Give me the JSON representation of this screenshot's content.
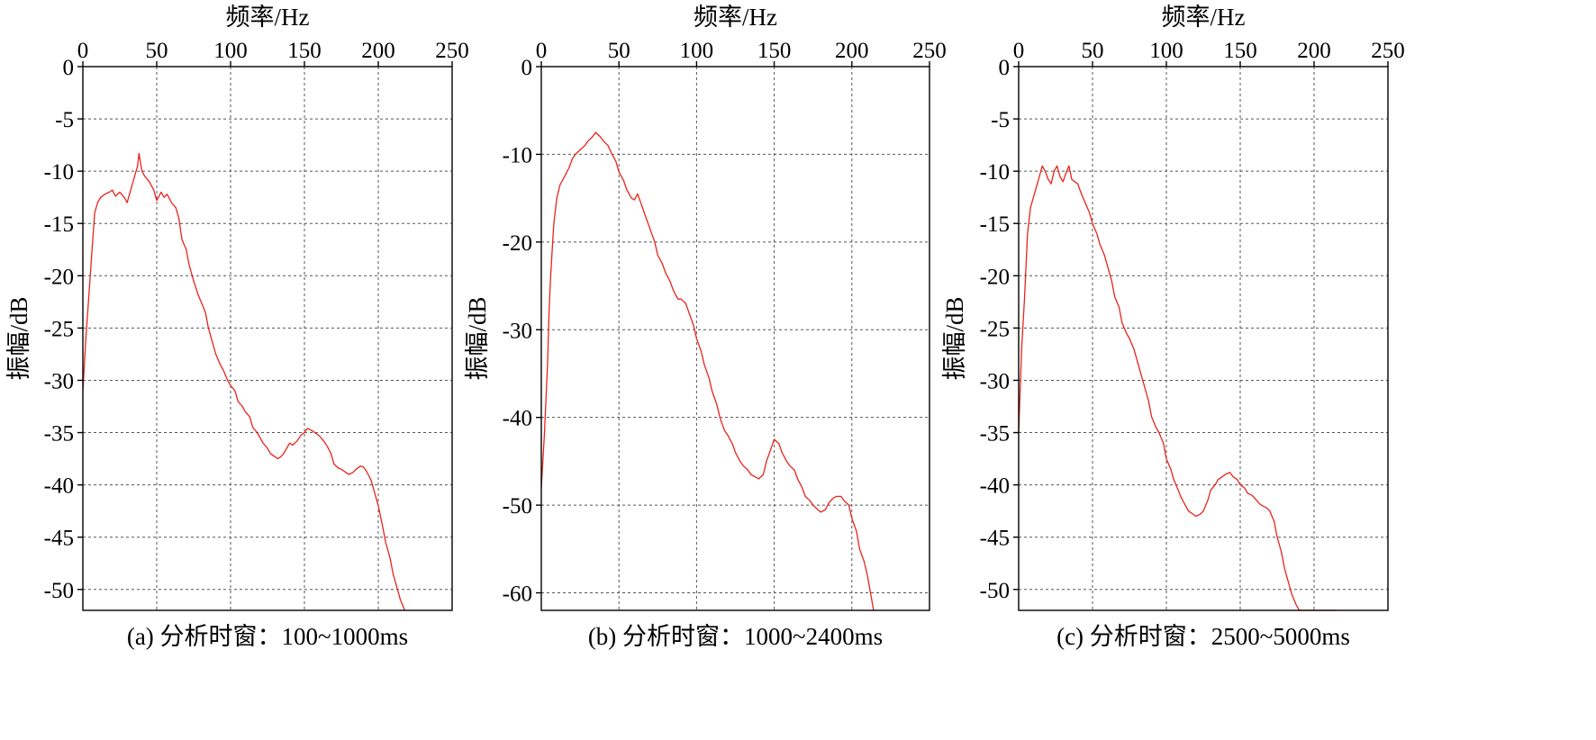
{
  "colors": {
    "series": "#e8231c",
    "grid": "#555555",
    "frame": "#000000",
    "background": "#ffffff"
  },
  "chart_data": [
    {
      "type": "line",
      "caption": "(a) 分析时窗：100~1000ms",
      "xlabel": "频率/Hz",
      "ylabel": "振幅/dB",
      "x_axis_position": "top",
      "grid": true,
      "xlim": [
        0,
        250
      ],
      "ylim": [
        -52,
        0
      ],
      "xticks": [
        "0",
        "50",
        "100",
        "150",
        "200",
        "250"
      ],
      "yticks": [
        "0",
        "-5",
        "-10",
        "-15",
        "-20",
        "-25",
        "-30",
        "-35",
        "-40",
        "-45",
        "-50"
      ],
      "series": [
        {
          "x": [
            0,
            2,
            4,
            6,
            8,
            10,
            12,
            15,
            18,
            20,
            22,
            25,
            28,
            30,
            33,
            35,
            37,
            38,
            40,
            42,
            45,
            48,
            50,
            53,
            55,
            57,
            60,
            63,
            65,
            67,
            70,
            72,
            75,
            78,
            80,
            83,
            85,
            88,
            90,
            93,
            95,
            98,
            100,
            103,
            105,
            108,
            110,
            113,
            115,
            118,
            120,
            122,
            125,
            127,
            130,
            132,
            134,
            136,
            138,
            140,
            142,
            145,
            148,
            150,
            152,
            155,
            157,
            160,
            163,
            165,
            168,
            170,
            173,
            175,
            178,
            180,
            183,
            185,
            188,
            190,
            192,
            195,
            197,
            200,
            203,
            205,
            208,
            210,
            212,
            215,
            218
          ],
          "y": [
            -31,
            -26,
            -22,
            -18,
            -14,
            -13,
            -12.5,
            -12.2,
            -12.0,
            -11.8,
            -12.4,
            -12.0,
            -12.5,
            -13.0,
            -11.5,
            -10.5,
            -9.5,
            -8.3,
            -10.0,
            -10.5,
            -11.0,
            -11.8,
            -12.8,
            -12.0,
            -12.5,
            -12.2,
            -13.0,
            -13.5,
            -14.5,
            -16.5,
            -17.5,
            -19.0,
            -20.5,
            -21.8,
            -22.5,
            -23.5,
            -25.0,
            -26.5,
            -27.5,
            -28.5,
            -29.0,
            -30.0,
            -30.5,
            -31.0,
            -32.0,
            -32.5,
            -33.0,
            -33.5,
            -34.5,
            -35.0,
            -35.5,
            -36.0,
            -36.5,
            -37.0,
            -37.3,
            -37.5,
            -37.3,
            -37.0,
            -36.5,
            -36.0,
            -36.2,
            -35.8,
            -35.2,
            -35.0,
            -34.6,
            -34.8,
            -35.0,
            -35.3,
            -35.8,
            -36.2,
            -37.0,
            -38.0,
            -38.4,
            -38.5,
            -38.8,
            -39.0,
            -38.8,
            -38.5,
            -38.2,
            -38.3,
            -38.7,
            -39.5,
            -40.5,
            -42.0,
            -44.0,
            -45.5,
            -47.0,
            -48.5,
            -49.5,
            -51.0,
            -52.0
          ]
        }
      ]
    },
    {
      "type": "line",
      "caption": "(b) 分析时窗：1000~2400ms",
      "xlabel": "频率/Hz",
      "ylabel": "振幅/dB",
      "x_axis_position": "top",
      "grid": true,
      "xlim": [
        0,
        250
      ],
      "ylim": [
        -62,
        0
      ],
      "xticks": [
        "0",
        "50",
        "100",
        "150",
        "200",
        "250"
      ],
      "yticks": [
        "0",
        "-10",
        "-20",
        "-30",
        "-40",
        "-50",
        "-60"
      ],
      "series": [
        {
          "x": [
            0,
            2,
            4,
            5,
            6,
            8,
            10,
            12,
            15,
            18,
            20,
            22,
            25,
            28,
            30,
            33,
            35,
            38,
            40,
            43,
            45,
            48,
            50,
            53,
            55,
            58,
            60,
            62,
            65,
            68,
            70,
            73,
            75,
            78,
            80,
            83,
            85,
            88,
            90,
            93,
            95,
            98,
            100,
            103,
            105,
            108,
            110,
            113,
            115,
            118,
            120,
            123,
            125,
            128,
            130,
            133,
            135,
            138,
            140,
            143,
            145,
            148,
            150,
            153,
            155,
            158,
            160,
            163,
            165,
            168,
            170,
            173,
            175,
            178,
            180,
            183,
            185,
            188,
            190,
            193,
            195,
            198,
            200,
            203,
            205,
            208,
            210,
            212,
            214
          ],
          "y": [
            -48,
            -42,
            -34,
            -28,
            -24,
            -18,
            -15,
            -13.5,
            -12.5,
            -11.5,
            -10.5,
            -10.0,
            -9.5,
            -9.0,
            -8.5,
            -8.0,
            -7.5,
            -8.0,
            -8.5,
            -9.0,
            -9.8,
            -10.8,
            -12.0,
            -13.0,
            -14.0,
            -15.0,
            -15.2,
            -14.5,
            -16.0,
            -17.5,
            -18.5,
            -20.0,
            -21.5,
            -22.5,
            -23.5,
            -24.5,
            -25.5,
            -26.5,
            -26.5,
            -27.0,
            -28.0,
            -29.5,
            -31.0,
            -32.5,
            -34.0,
            -35.5,
            -37.0,
            -38.5,
            -40.0,
            -41.5,
            -42.0,
            -43.0,
            -44.0,
            -45.0,
            -45.5,
            -46.0,
            -46.5,
            -46.8,
            -47.0,
            -46.5,
            -45.0,
            -43.5,
            -42.5,
            -43.0,
            -44.0,
            -45.0,
            -45.5,
            -46.0,
            -47.0,
            -48.0,
            -49.0,
            -49.5,
            -50.0,
            -50.5,
            -50.8,
            -50.5,
            -49.8,
            -49.2,
            -49.0,
            -49.0,
            -49.5,
            -50.0,
            -51.5,
            -53.0,
            -55.0,
            -56.5,
            -58.0,
            -60.0,
            -62.0
          ]
        }
      ]
    },
    {
      "type": "line",
      "caption": "(c) 分析时窗：2500~5000ms",
      "xlabel": "频率/Hz",
      "ylabel": "振幅/dB",
      "x_axis_position": "top",
      "grid": true,
      "xlim": [
        0,
        250
      ],
      "ylim": [
        -52,
        0
      ],
      "xticks": [
        "0",
        "50",
        "100",
        "150",
        "200",
        "250"
      ],
      "yticks": [
        "0",
        "-5",
        "-10",
        "-15",
        "-20",
        "-25",
        "-30",
        "-35",
        "-40",
        "-45",
        "-50"
      ],
      "series": [
        {
          "x": [
            0,
            2,
            4,
            6,
            8,
            10,
            12,
            14,
            16,
            18,
            20,
            22,
            24,
            26,
            28,
            30,
            32,
            34,
            36,
            38,
            40,
            42,
            45,
            48,
            50,
            53,
            55,
            58,
            60,
            63,
            65,
            68,
            70,
            73,
            75,
            78,
            80,
            83,
            85,
            88,
            90,
            93,
            95,
            98,
            100,
            103,
            105,
            108,
            110,
            113,
            115,
            118,
            120,
            123,
            125,
            128,
            130,
            133,
            135,
            138,
            140,
            143,
            145,
            148,
            150,
            153,
            155,
            158,
            160,
            163,
            165,
            168,
            170,
            173,
            175,
            178,
            180,
            183,
            185,
            188,
            190,
            193,
            195,
            198,
            200,
            203,
            205,
            208,
            210,
            213,
            215
          ],
          "y": [
            -35,
            -27,
            -22,
            -16,
            -13.5,
            -12.5,
            -11.5,
            -10.5,
            -9.5,
            -10.0,
            -10.8,
            -11.2,
            -10.0,
            -9.5,
            -10.5,
            -11.0,
            -10.2,
            -9.5,
            -10.8,
            -11.0,
            -11.2,
            -12.0,
            -13.0,
            -14.0,
            -15.0,
            -16.0,
            -17.0,
            -18.0,
            -19.0,
            -20.5,
            -22.0,
            -23.0,
            -24.5,
            -25.5,
            -26.0,
            -27.0,
            -28.0,
            -29.5,
            -30.5,
            -32.0,
            -33.5,
            -34.5,
            -35.0,
            -36.0,
            -37.5,
            -38.5,
            -39.5,
            -40.5,
            -41.2,
            -42.0,
            -42.5,
            -42.8,
            -43.0,
            -42.8,
            -42.5,
            -41.5,
            -40.5,
            -40.0,
            -39.5,
            -39.2,
            -39.0,
            -38.8,
            -39.2,
            -39.5,
            -40.0,
            -40.3,
            -40.8,
            -41.0,
            -41.3,
            -41.8,
            -42.0,
            -42.2,
            -42.5,
            -43.5,
            -45.0,
            -46.5,
            -48.0,
            -49.5,
            -50.5,
            -51.5,
            -52.0,
            -52.0,
            -52.0,
            -52.0,
            -52.0,
            -52.0,
            -52.0,
            -52.0,
            -52.0,
            -52.0,
            -52.0
          ]
        }
      ]
    }
  ]
}
